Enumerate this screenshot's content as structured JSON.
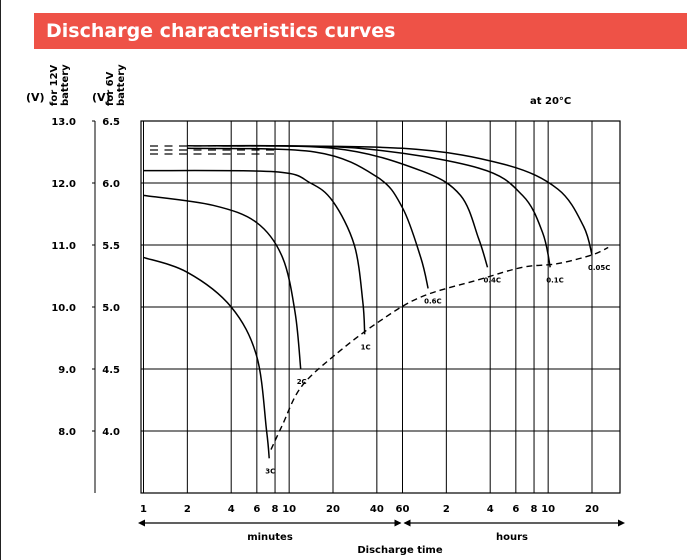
{
  "header": {
    "title": "Discharge characteristics curves"
  },
  "chart_data": {
    "type": "line",
    "title": "Discharge characteristics curves",
    "note": "at 20°C",
    "ylabel_12v": "(V) for 12V battery",
    "ylabel_6v": "(V) for 6V battery",
    "xlabel": "Discharge time",
    "x_minutes_label": "minutes",
    "x_hours_label": "hours",
    "x_scale": "log",
    "x_unit": "minutes",
    "x_ticks": [
      {
        "label": "1",
        "minutes": 1
      },
      {
        "label": "2",
        "minutes": 2
      },
      {
        "label": "4",
        "minutes": 4
      },
      {
        "label": "6",
        "minutes": 6
      },
      {
        "label": "8",
        "minutes": 8
      },
      {
        "label": "10",
        "minutes": 10
      },
      {
        "label": "20",
        "minutes": 20
      },
      {
        "label": "40",
        "minutes": 40
      },
      {
        "label": "60",
        "minutes": 60
      },
      {
        "label": "2",
        "minutes": 120
      },
      {
        "label": "4",
        "minutes": 240
      },
      {
        "label": "6",
        "minutes": 360
      },
      {
        "label": "8",
        "minutes": 480
      },
      {
        "label": "10",
        "minutes": 600
      },
      {
        "label": "20",
        "minutes": 1200
      }
    ],
    "y_ticks_12v": [
      "13.0",
      "12.0",
      "11.0",
      "10.0",
      "9.0",
      "8.0"
    ],
    "y_ticks_6v": [
      "6.5",
      "6.0",
      "5.5",
      "5.0",
      "4.5",
      "4.0"
    ],
    "ylim_6v": [
      3.5,
      6.5
    ],
    "series": [
      {
        "name": "3C",
        "points": [
          [
            1,
            5.4
          ],
          [
            2,
            5.28
          ],
          [
            4,
            5.0
          ],
          [
            6,
            4.6
          ],
          [
            7,
            4.0
          ],
          [
            7.3,
            3.78
          ]
        ]
      },
      {
        "name": "2C",
        "points": [
          [
            1,
            5.9
          ],
          [
            3,
            5.82
          ],
          [
            6,
            5.68
          ],
          [
            9,
            5.4
          ],
          [
            11,
            4.95
          ],
          [
            12,
            4.5
          ]
        ]
      },
      {
        "name": "1C",
        "points": [
          [
            1,
            6.1
          ],
          [
            8,
            6.09
          ],
          [
            14,
            6.0
          ],
          [
            20,
            5.85
          ],
          [
            28,
            5.5
          ],
          [
            32,
            5.05
          ],
          [
            33,
            4.78
          ]
        ]
      },
      {
        "name": "0.6C",
        "points": [
          [
            2,
            6.28
          ],
          [
            15,
            6.25
          ],
          [
            40,
            6.05
          ],
          [
            60,
            5.8
          ],
          [
            80,
            5.4
          ],
          [
            90,
            5.15
          ]
        ]
      },
      {
        "name": "0.4C",
        "points": [
          [
            2,
            6.3
          ],
          [
            20,
            6.28
          ],
          [
            80,
            6.1
          ],
          [
            150,
            5.9
          ],
          [
            200,
            5.55
          ],
          [
            230,
            5.32
          ]
        ]
      },
      {
        "name": "0.1C",
        "points": [
          [
            3,
            6.3
          ],
          [
            30,
            6.28
          ],
          [
            200,
            6.12
          ],
          [
            400,
            5.9
          ],
          [
            550,
            5.6
          ],
          [
            620,
            5.32
          ]
        ]
      },
      {
        "name": "0.05C",
        "points": [
          [
            3,
            6.3
          ],
          [
            60,
            6.28
          ],
          [
            300,
            6.15
          ],
          [
            700,
            5.95
          ],
          [
            1050,
            5.65
          ],
          [
            1200,
            5.42
          ]
        ]
      }
    ],
    "cutoff_line": [
      [
        7.5,
        3.85
      ],
      [
        9,
        4.05
      ],
      [
        12,
        4.35
      ],
      [
        20,
        4.6
      ],
      [
        40,
        4.87
      ],
      [
        80,
        5.08
      ],
      [
        200,
        5.22
      ],
      [
        400,
        5.32
      ],
      [
        700,
        5.35
      ],
      [
        1200,
        5.42
      ],
      [
        1550,
        5.48
      ]
    ],
    "flat_marks_count": 9
  }
}
